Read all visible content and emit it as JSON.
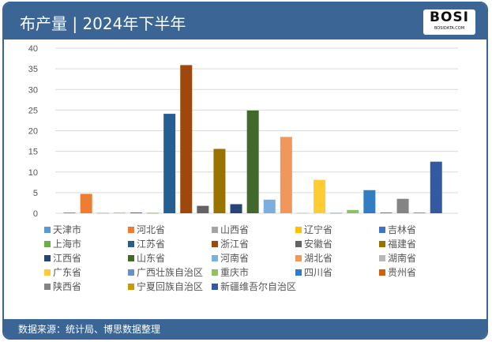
{
  "header": {
    "title": "布产量 | 2024年下半年",
    "logo": "BOSI BOSIDATA.COM"
  },
  "footer": {
    "source": "数据来源：统计局、博思数据整理"
  },
  "chart_data": {
    "type": "bar",
    "title": "",
    "xlabel": "",
    "ylabel": "",
    "ylim": [
      0,
      40
    ],
    "yticks": [
      "0",
      "5",
      "10",
      "15",
      "20",
      "25",
      "30",
      "35",
      "40"
    ],
    "grid": true,
    "legend": "bottom",
    "categories": [
      "天津市",
      "河北省",
      "山西省",
      "辽宁省",
      "吉林省",
      "上海市",
      "江苏省",
      "浙江省",
      "安徽省",
      "福建省",
      "江西省",
      "山东省",
      "河南省",
      "湖北省",
      "湖南省",
      "广东省",
      "广西壮族自治区",
      "重庆市",
      "四川省",
      "贵州省",
      "陕西省",
      "宁夏回族自治区",
      "新疆维吾尔自治区"
    ],
    "values": [
      0.2,
      4.7,
      0.1,
      0.2,
      0.2,
      0.1,
      24.1,
      35.9,
      1.8,
      15.6,
      2.2,
      24.9,
      3.3,
      18.5,
      0.1,
      8.1,
      0.1,
      0.8,
      5.6,
      0.2,
      3.5,
      0.2,
      12.5
    ],
    "colors": [
      "#5b9bd5",
      "#ed7d31",
      "#a5a5a5",
      "#ffc000",
      "#4472c4",
      "#70ad47",
      "#255e91",
      "#9e480e",
      "#636363",
      "#997300",
      "#264478",
      "#43682b",
      "#7cafdd",
      "#f1975a",
      "#b7b7b7",
      "#ffcd33",
      "#698ed0",
      "#8cc168",
      "#327dc2",
      "#d26012",
      "#848484",
      "#cc9a00",
      "#335aa1"
    ]
  }
}
